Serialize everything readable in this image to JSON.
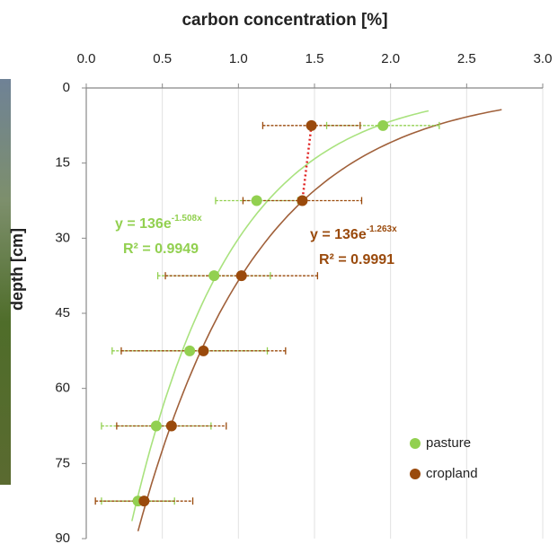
{
  "chart_data": {
    "type": "scatter",
    "title": "carbon concentration  [%]",
    "y_label": "depth [cm]",
    "xlim": [
      0,
      3
    ],
    "ylim": [
      0,
      90
    ],
    "xticks": [
      {
        "value": 0,
        "label": "0.0"
      },
      0.5,
      {
        "value": 1,
        "label": "1.0"
      },
      1.5,
      {
        "value": 2,
        "label": "2.0"
      },
      2.5,
      {
        "value": 3,
        "label": "3.0"
      }
    ],
    "yticks": [
      0,
      15,
      30,
      45,
      60,
      75,
      90
    ],
    "y_reversed": true,
    "grid": true,
    "legend": "lower right",
    "series": [
      {
        "name": "pasture",
        "color": "#92d050",
        "curve_color": "#a9e27e",
        "x": [
          1.95,
          1.12,
          0.84,
          0.68,
          0.46,
          0.34
        ],
        "values": [
          7.5,
          22.5,
          37.5,
          52.5,
          67.5,
          82.5
        ],
        "xerr": [
          0.37,
          0.27,
          0.37,
          0.51,
          0.36,
          0.24
        ],
        "fit": {
          "a": 136,
          "b": -1.508
        },
        "equation": "y = 136e",
        "exponent": "-1.508x",
        "r_squared": "R² = 0.9949"
      },
      {
        "name": "cropland",
        "color": "#9a4a0c",
        "curve_color": "#a0603a",
        "x": [
          1.48,
          1.42,
          1.02,
          0.77,
          0.56,
          0.38
        ],
        "values": [
          7.5,
          22.5,
          37.5,
          52.5,
          67.5,
          82.5
        ],
        "xerr": [
          0.32,
          0.39,
          0.5,
          0.54,
          0.36,
          0.32
        ],
        "fit": {
          "a": 136,
          "b": -1.263
        },
        "equation": "y = 136e",
        "exponent": "-1.263x",
        "r_squared": "R² = 0.9991"
      }
    ]
  }
}
